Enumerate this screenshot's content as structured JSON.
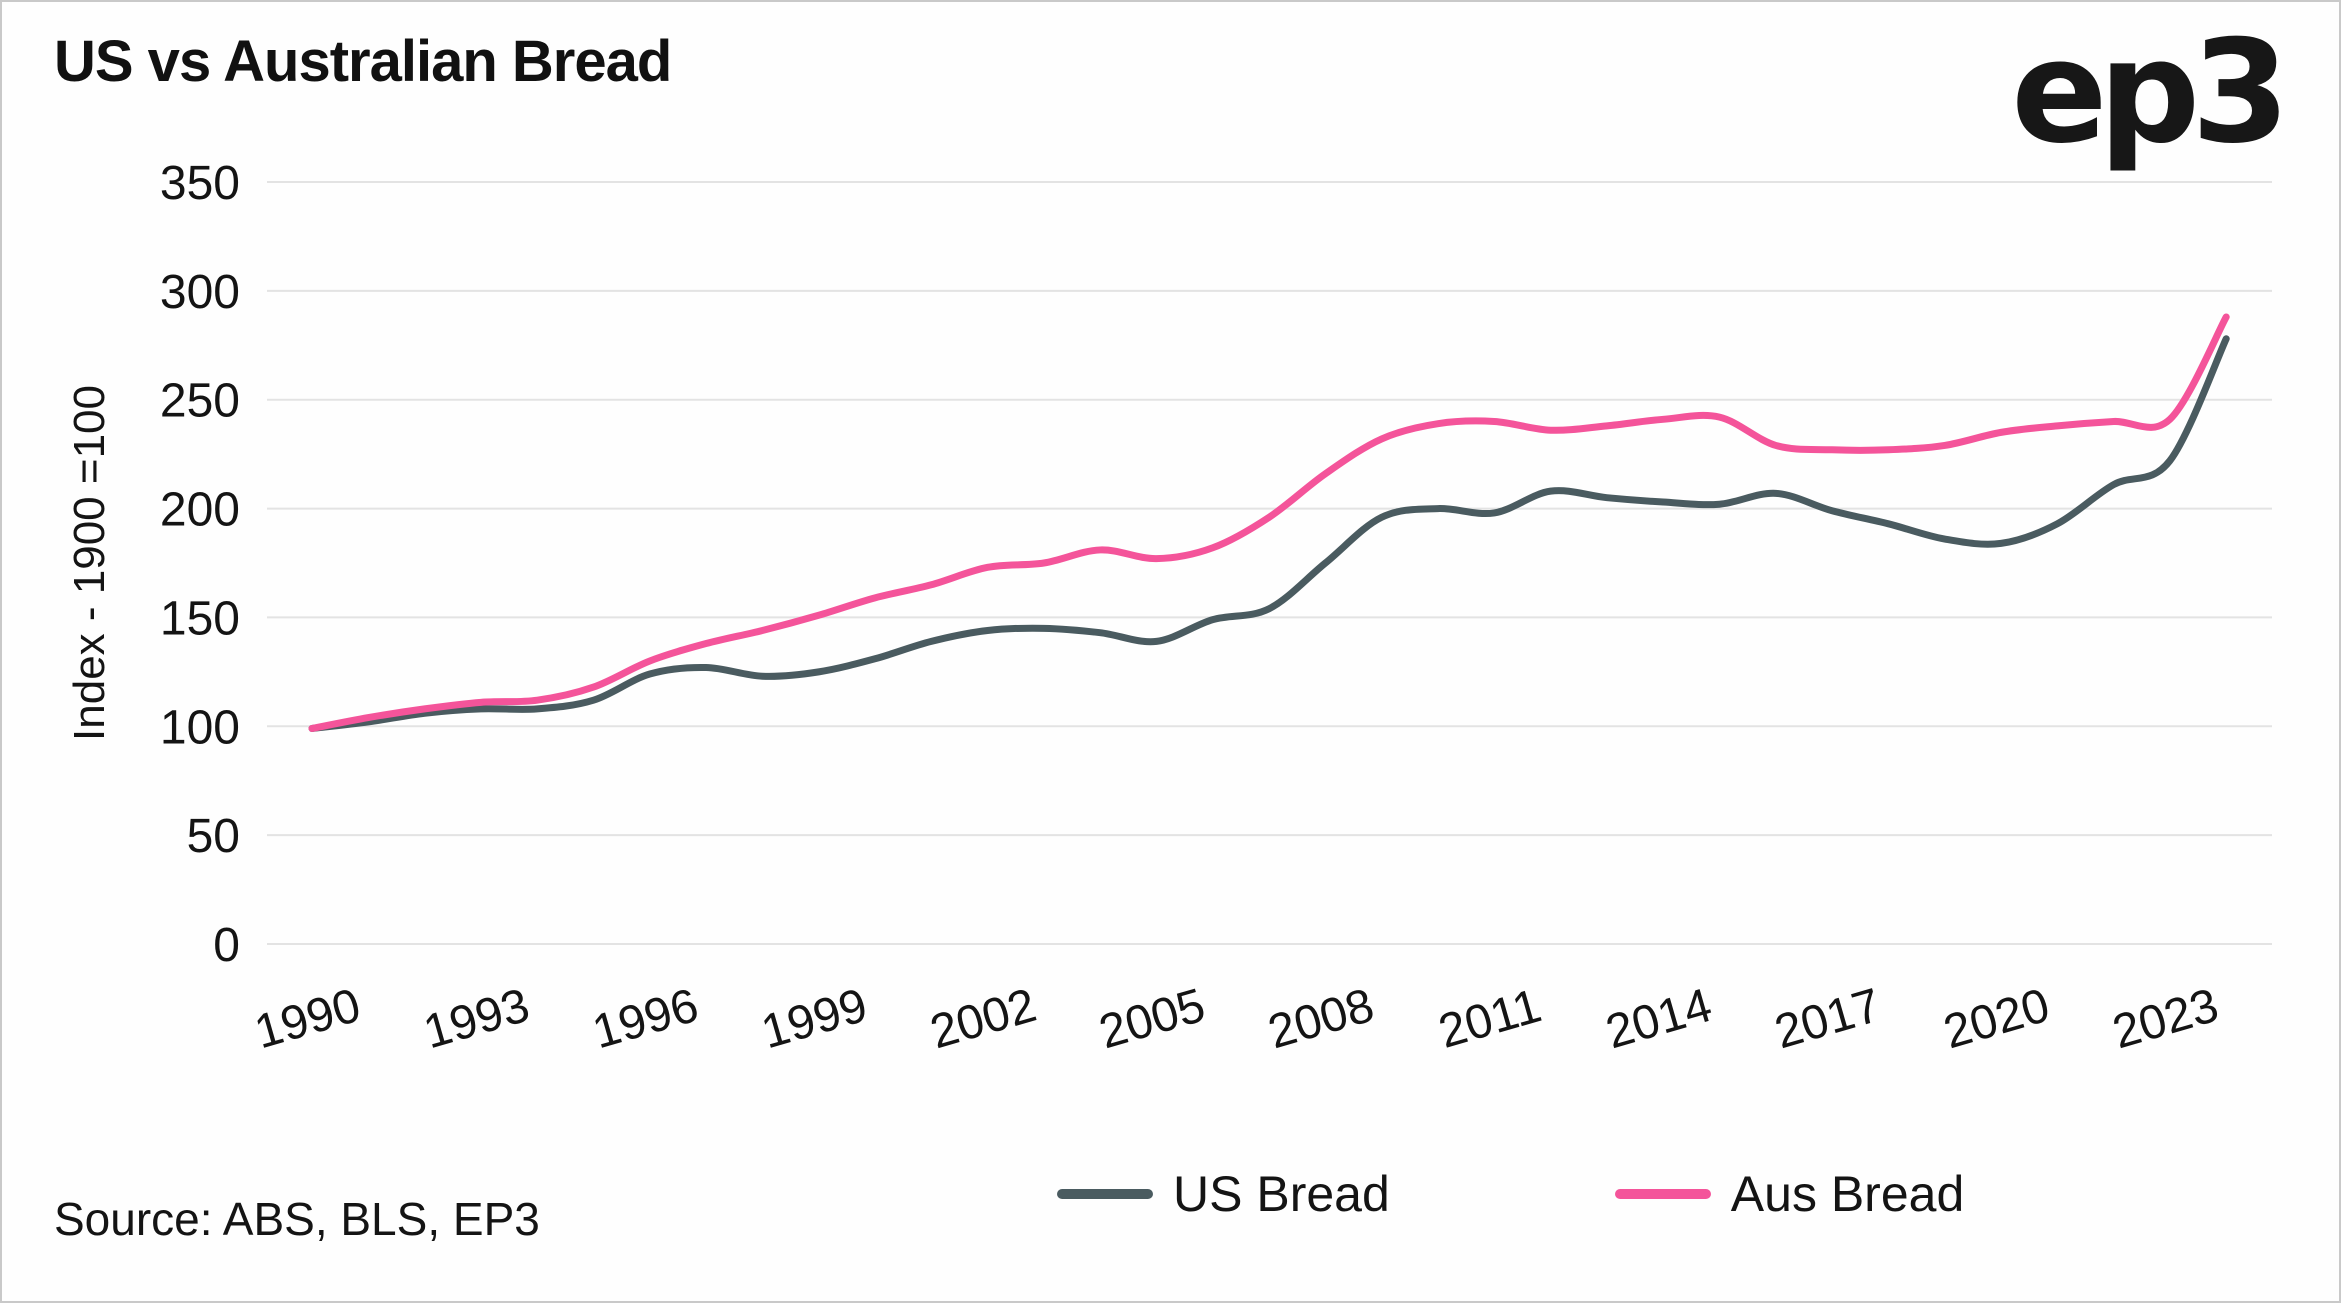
{
  "title": "US vs Australian Bread",
  "logo": "ep3",
  "source": "Source: ABS, BLS, EP3",
  "colors": {
    "us_line": "#4a5b60",
    "aus_line": "#f4549a",
    "grid": "#e3e3e3",
    "text": "#141414",
    "background": "#fefefe"
  },
  "chart_data": {
    "type": "line",
    "title": "US vs Australian Bread",
    "ylabel": "Index - 1900 =100",
    "xlabel": "",
    "ylim": [
      0,
      350
    ],
    "ytick_step": 50,
    "grid": "horizontal",
    "legend_position": "bottom",
    "xticks": [
      1990,
      1993,
      1996,
      1999,
      2002,
      2005,
      2008,
      2011,
      2014,
      2017,
      2020,
      2023
    ],
    "x": [
      1990,
      1991,
      1992,
      1993,
      1994,
      1995,
      1996,
      1997,
      1998,
      1999,
      2000,
      2001,
      2002,
      2003,
      2004,
      2005,
      2006,
      2007,
      2008,
      2009,
      2010,
      2011,
      2012,
      2013,
      2014,
      2015,
      2016,
      2017,
      2018,
      2019,
      2020,
      2021,
      2022,
      2023,
      2024
    ],
    "series": [
      {
        "name": "US Bread",
        "color": "#4a5b60",
        "values": [
          99,
          102,
          106,
          108,
          108,
          112,
          124,
          127,
          123,
          125,
          131,
          139,
          144,
          145,
          143,
          139,
          149,
          154,
          175,
          196,
          200,
          198,
          208,
          205,
          203,
          202,
          207,
          199,
          193,
          186,
          184,
          193,
          211,
          222,
          278
        ]
      },
      {
        "name": "Aus Bread",
        "color": "#f4549a",
        "values": [
          99,
          104,
          108,
          111,
          112,
          118,
          130,
          138,
          144,
          151,
          159,
          165,
          173,
          175,
          181,
          177,
          182,
          196,
          216,
          232,
          239,
          240,
          236,
          238,
          241,
          242,
          229,
          227,
          227,
          229,
          235,
          238,
          240,
          241,
          288
        ]
      }
    ]
  }
}
